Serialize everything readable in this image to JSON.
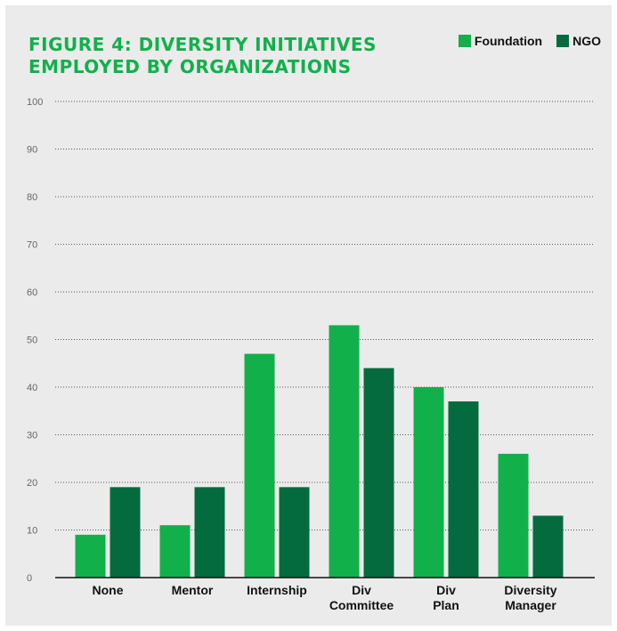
{
  "colors": {
    "background": "#ebebeb",
    "title": "#11b04b",
    "foundation": "#11b04b",
    "ngo": "#046b3f",
    "grid": "#555555"
  },
  "chart_data": {
    "type": "bar",
    "title_lines": [
      "FIGURE 4: DIVERSITY INITIATIVES",
      "EMPLOYED BY ORGANIZATIONS"
    ],
    "categories": [
      [
        "None"
      ],
      [
        "Mentor"
      ],
      [
        "Internship"
      ],
      [
        "Div",
        "Committee"
      ],
      [
        "Div",
        "Plan"
      ],
      [
        "Diversity",
        "Manager"
      ]
    ],
    "series": [
      {
        "name": "Foundation",
        "color": "#11b04b",
        "values": [
          9,
          11,
          47,
          53,
          40,
          26
        ]
      },
      {
        "name": "NGO",
        "color": "#046b3f",
        "values": [
          19,
          19,
          19,
          44,
          37,
          13
        ]
      }
    ],
    "ylim": [
      0,
      100
    ],
    "yticks": [
      "0",
      "10",
      "20",
      "30",
      "40",
      "50",
      "60",
      "70",
      "80",
      "90",
      "100"
    ],
    "grid": true,
    "legend": "top-right"
  }
}
